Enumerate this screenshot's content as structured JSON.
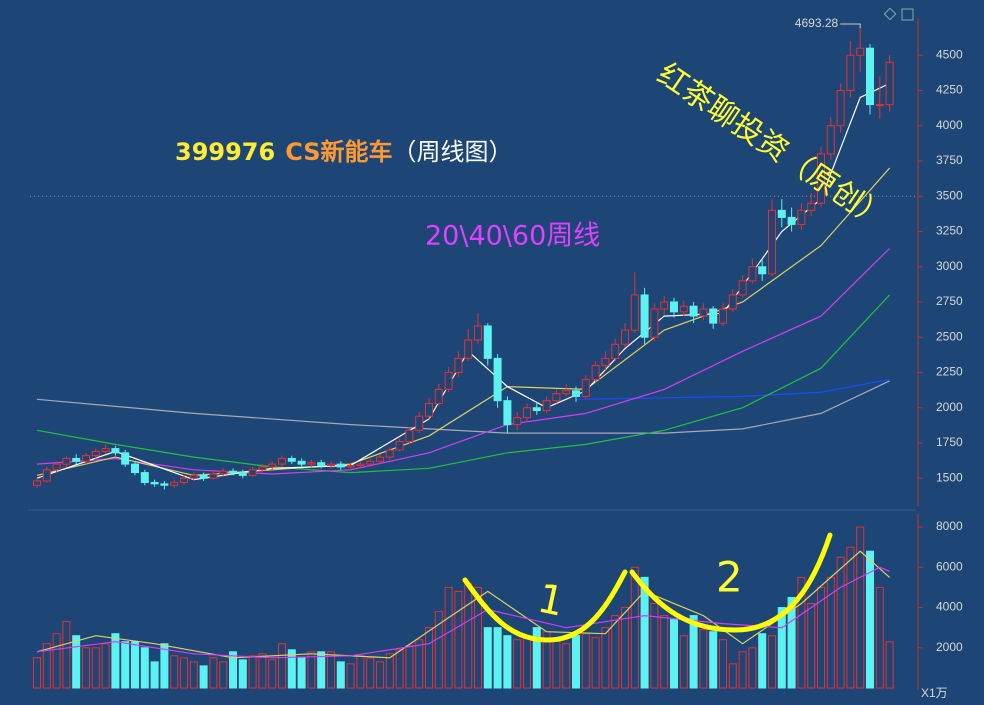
{
  "chart_data": [
    {
      "type": "candlestick",
      "title": {
        "code": "399976",
        "name": "CS新能车",
        "period": "（周线图）"
      },
      "annotations": [
        {
          "text": "20\\40\\60周线",
          "color": "#e040ff"
        },
        {
          "text": "红茶聊投资（原创）",
          "color": "#ffff33"
        }
      ],
      "open": [
        1450,
        1480,
        1560,
        1600,
        1640,
        1620,
        1660,
        1690,
        1710,
        1680,
        1600,
        1540,
        1470,
        1460,
        1450,
        1470,
        1500,
        1520,
        1500,
        1530,
        1550,
        1540,
        1520,
        1560,
        1580,
        1600,
        1640,
        1620,
        1600,
        1610,
        1590,
        1600,
        1580,
        1590,
        1600,
        1620,
        1650,
        1700,
        1760,
        1840,
        1940,
        2030,
        2130,
        2250,
        2350,
        2480,
        2580,
        2350,
        2050,
        1880,
        1930,
        2000,
        1980,
        2050,
        2100,
        2120,
        2080,
        2200,
        2300,
        2350,
        2450,
        2550,
        2800,
        2500,
        2700,
        2750,
        2680,
        2720,
        2650,
        2700,
        2600,
        2700,
        2800,
        2900,
        3000,
        2950,
        3400,
        3350,
        3300,
        3400,
        3450,
        3800,
        4000,
        4250,
        4500,
        4550,
        4150,
        4150
      ],
      "high": [
        1500,
        1580,
        1620,
        1660,
        1670,
        1680,
        1710,
        1740,
        1730,
        1700,
        1620,
        1560,
        1490,
        1480,
        1490,
        1520,
        1540,
        1540,
        1550,
        1570,
        1570,
        1560,
        1580,
        1600,
        1620,
        1660,
        1660,
        1640,
        1630,
        1630,
        1620,
        1620,
        1610,
        1620,
        1640,
        1670,
        1720,
        1780,
        1860,
        1970,
        2070,
        2170,
        2290,
        2400,
        2560,
        2670,
        2600,
        2380,
        2080,
        1970,
        2030,
        2040,
        2080,
        2130,
        2170,
        2150,
        2230,
        2330,
        2400,
        2490,
        2600,
        2960,
        2850,
        2740,
        2790,
        2780,
        2760,
        2750,
        2740,
        2720,
        2740,
        2840,
        2940,
        3060,
        3050,
        3480,
        3480,
        3420,
        3450,
        3520,
        3850,
        4060,
        4300,
        4600,
        4693.28,
        4580,
        4350,
        4500
      ],
      "low": [
        1430,
        1470,
        1540,
        1580,
        1600,
        1600,
        1640,
        1670,
        1660,
        1580,
        1520,
        1450,
        1440,
        1420,
        1430,
        1450,
        1480,
        1480,
        1490,
        1510,
        1520,
        1500,
        1510,
        1540,
        1560,
        1580,
        1600,
        1580,
        1580,
        1570,
        1570,
        1560,
        1560,
        1570,
        1580,
        1600,
        1630,
        1690,
        1740,
        1820,
        1920,
        2010,
        2110,
        2220,
        2330,
        2450,
        2300,
        2000,
        1820,
        1840,
        1900,
        1950,
        1960,
        2030,
        2080,
        2040,
        2060,
        2180,
        2270,
        2330,
        2430,
        2530,
        2450,
        2470,
        2660,
        2640,
        2650,
        2600,
        2620,
        2560,
        2580,
        2680,
        2780,
        2880,
        2900,
        2930,
        3280,
        3250,
        3260,
        3360,
        3420,
        3760,
        3950,
        4200,
        4380,
        4080,
        4050,
        4100
      ],
      "close": [
        1480,
        1560,
        1600,
        1640,
        1620,
        1660,
        1690,
        1710,
        1680,
        1600,
        1540,
        1470,
        1460,
        1450,
        1470,
        1500,
        1520,
        1500,
        1530,
        1550,
        1540,
        1520,
        1560,
        1580,
        1600,
        1640,
        1620,
        1600,
        1610,
        1590,
        1600,
        1580,
        1590,
        1600,
        1620,
        1650,
        1700,
        1760,
        1840,
        1940,
        2030,
        2130,
        2250,
        2350,
        2480,
        2580,
        2350,
        2050,
        1880,
        1930,
        2000,
        1980,
        2050,
        2100,
        2120,
        2080,
        2200,
        2300,
        2350,
        2450,
        2550,
        2800,
        2500,
        2700,
        2750,
        2680,
        2720,
        2650,
        2700,
        2600,
        2700,
        2800,
        2900,
        3000,
        2950,
        3400,
        3350,
        3300,
        3400,
        3450,
        3800,
        4000,
        4250,
        4500,
        4550,
        4150,
        4150,
        4450
      ],
      "up_color": "#e83030",
      "down_color": "#5cf2f2",
      "ylim": [
        1310,
        4750
      ],
      "yticks": [
        1500,
        1750,
        2000,
        2250,
        2500,
        2750,
        3000,
        3250,
        3500,
        3750,
        4000,
        4250,
        4500
      ],
      "reference_line": 3500,
      "moving_averages": [
        {
          "color": "#a8a8b8",
          "x": [
            0,
            16,
            32,
            48,
            64,
            72,
            80,
            87
          ],
          "values": [
            2060,
            1960,
            1880,
            1820,
            1820,
            1850,
            1960,
            2190
          ]
        },
        {
          "color": "#1a4cff",
          "x": [
            55,
            64,
            72,
            80,
            87
          ],
          "values": [
            2060,
            2070,
            2080,
            2110,
            2200
          ]
        },
        {
          "color": "#22c040",
          "x": [
            0,
            8,
            16,
            24,
            32,
            40,
            48,
            56,
            64,
            72,
            80,
            87
          ],
          "values": [
            1840,
            1740,
            1650,
            1580,
            1540,
            1570,
            1680,
            1740,
            1840,
            2000,
            2280,
            2800
          ]
        },
        {
          "color": "#d040f0",
          "x": [
            0,
            8,
            16,
            24,
            32,
            40,
            48,
            56,
            64,
            72,
            80,
            87
          ],
          "values": [
            1600,
            1640,
            1560,
            1530,
            1560,
            1680,
            1880,
            1960,
            2130,
            2400,
            2650,
            3130
          ]
        },
        {
          "color": "#e0d060",
          "x": [
            0,
            8,
            16,
            24,
            32,
            40,
            48,
            56,
            64,
            72,
            80,
            87
          ],
          "values": [
            1520,
            1650,
            1520,
            1560,
            1600,
            1800,
            2150,
            2130,
            2550,
            2750,
            3150,
            3700
          ]
        },
        {
          "color": "#ffffff",
          "x": [
            0,
            8,
            16,
            24,
            32,
            40,
            44,
            48,
            52,
            56,
            60,
            64,
            70,
            76,
            80,
            84,
            87
          ],
          "values": [
            1500,
            1690,
            1490,
            1570,
            1590,
            1920,
            2400,
            2150,
            2000,
            2120,
            2420,
            2650,
            2670,
            3250,
            3480,
            4200,
            4300
          ]
        }
      ]
    },
    {
      "type": "bar",
      "values": [
        1500,
        2200,
        2700,
        3300,
        2600,
        2000,
        2000,
        2200,
        2700,
        2300,
        2300,
        2000,
        1300,
        2200,
        1600,
        1500,
        1300,
        1100,
        1500,
        1300,
        1800,
        1400,
        1600,
        1700,
        1400,
        2200,
        1900,
        1500,
        1800,
        1800,
        1800,
        1300,
        1200,
        1600,
        1500,
        1300,
        1700,
        1900,
        2100,
        2400,
        3000,
        3800,
        5000,
        4800,
        5200,
        5000,
        3000,
        3000,
        2600,
        2400,
        2500,
        3000,
        2800,
        2400,
        2200,
        2600,
        2700,
        2500,
        3000,
        3600,
        4000,
        6000,
        5500,
        4200,
        3600,
        3400,
        2600,
        3600,
        2900,
        2800,
        2400,
        1200,
        1800,
        2000,
        2700,
        2600,
        4000,
        4500,
        5500,
        4200,
        5000,
        5500,
        6500,
        7000,
        8000,
        6800,
        5000,
        2300
      ],
      "ylim": [
        0,
        8600
      ],
      "yticks": [
        2000,
        4000,
        6000,
        8000
      ],
      "unit": "X1万",
      "annotations": [
        {
          "text": "1",
          "color": "#ffff33"
        },
        {
          "text": "2",
          "color": "#ffff33"
        }
      ],
      "moving_averages": [
        {
          "color": "#e0d060",
          "x": [
            0,
            6,
            12,
            20,
            28,
            36,
            42,
            46,
            52,
            58,
            62,
            68,
            72,
            78,
            84,
            87
          ],
          "values": [
            1800,
            2600,
            2200,
            1500,
            1700,
            1500,
            3500,
            4800,
            2800,
            2700,
            4800,
            3600,
            2200,
            4200,
            6800,
            5500
          ]
        },
        {
          "color": "#d040f0",
          "x": [
            0,
            8,
            16,
            24,
            32,
            40,
            46,
            54,
            62,
            70,
            76,
            82,
            86,
            87
          ],
          "values": [
            1800,
            2300,
            1700,
            1500,
            1600,
            2200,
            3900,
            3000,
            3600,
            3200,
            3000,
            5000,
            6000,
            5800
          ]
        }
      ]
    }
  ]
}
